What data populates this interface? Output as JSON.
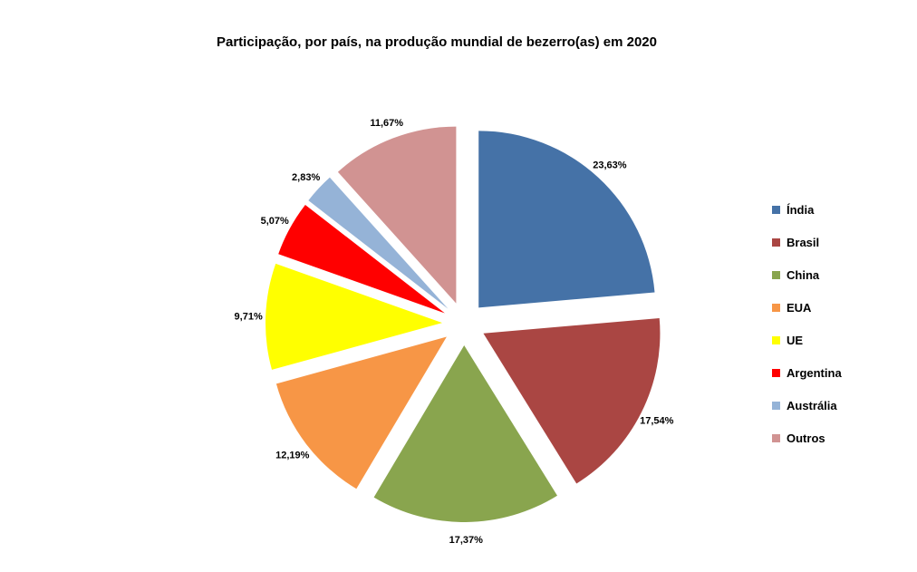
{
  "chart_data": {
    "type": "pie",
    "title": "Participação, por país, na produção mundial de bezerro(as) em 2020",
    "exploded": true,
    "slices": [
      {
        "label": "Índia",
        "value": 23.63,
        "display": "23,63%",
        "color": "#4572A7"
      },
      {
        "label": "Brasil",
        "value": 17.54,
        "display": "17,54%",
        "color": "#AA4643"
      },
      {
        "label": "China",
        "value": 17.37,
        "display": "17,37%",
        "color": "#89A54E"
      },
      {
        "label": "EUA",
        "value": 12.19,
        "display": "12,19%",
        "color": "#F79646"
      },
      {
        "label": "UE",
        "value": 9.71,
        "display": "9,71%",
        "color": "#FFFF00"
      },
      {
        "label": "Argentina",
        "value": 5.07,
        "display": "5,07%",
        "color": "#FF0000"
      },
      {
        "label": "Austrália",
        "value": 2.83,
        "display": "2,83%",
        "color": "#95B3D7"
      },
      {
        "label": "Outros",
        "value": 11.67,
        "display": "11,67%",
        "color": "#D19392"
      }
    ],
    "legend_position": "right"
  }
}
